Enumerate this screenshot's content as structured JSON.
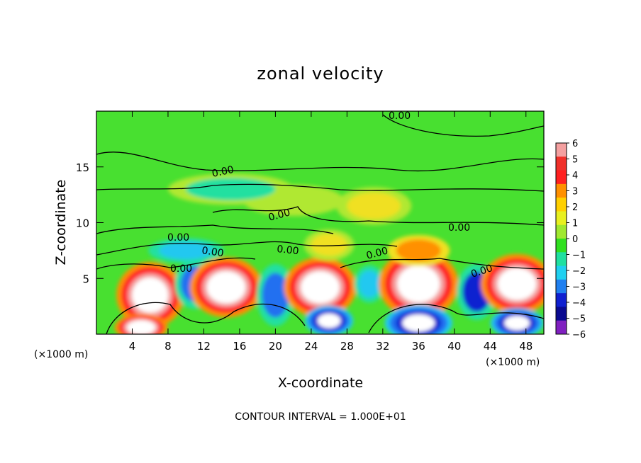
{
  "chart_data": {
    "type": "heatmap",
    "title": "zonal velocity",
    "xlabel": "X-coordinate",
    "ylabel": "Z-coordinate",
    "x_unit_left": "(×1000 m)",
    "x_unit_right": "(×1000 m)",
    "footer": "CONTOUR INTERVAL = 1.000E+01",
    "xlim": [
      0,
      50
    ],
    "ylim": [
      0,
      20
    ],
    "x_ticks": [
      "4",
      "8",
      "12",
      "16",
      "20",
      "24",
      "28",
      "32",
      "36",
      "40",
      "44",
      "48"
    ],
    "y_ticks": [
      "5",
      "10",
      "15"
    ],
    "contour_labels": [
      "0.00",
      "0.00",
      "0.00",
      "0.00",
      "0.00",
      "0.00",
      "0.00",
      "0.00",
      "0.00",
      "0.00"
    ],
    "colorbar": {
      "levels": [
        "6",
        "5",
        "4",
        "3",
        "2",
        "1",
        "0",
        "−1",
        "−2",
        "−3",
        "−4",
        "−5",
        "−6"
      ],
      "colors": [
        "#ffffff",
        "#f4a0a0",
        "#f0302a",
        "#ff2020",
        "#ff9000",
        "#ffd000",
        "#e8f020",
        "#a0e830",
        "#30e020",
        "#20e0a0",
        "#20d0f0",
        "#2080f0",
        "#1020d0",
        "#0a0a90",
        "#8020c0"
      ]
    },
    "blobs": [
      {
        "x": 6.0,
        "z": 3.5,
        "v": 6,
        "rx": 2.8,
        "rz": 2.2
      },
      {
        "x": 5.0,
        "z": 0.6,
        "v": 6,
        "rx": 2.2,
        "rz": 0.9
      },
      {
        "x": 11.0,
        "z": 4.5,
        "v": -3,
        "rx": 1.6,
        "rz": 1.6
      },
      {
        "x": 14.5,
        "z": 4.2,
        "v": 6,
        "rx": 3.0,
        "rz": 2.0
      },
      {
        "x": 20.0,
        "z": 3.5,
        "v": -3,
        "rx": 1.5,
        "rz": 2.0
      },
      {
        "x": 25.0,
        "z": 4.2,
        "v": 6,
        "rx": 3.0,
        "rz": 2.0
      },
      {
        "x": 26.0,
        "z": 1.2,
        "v": -6,
        "rx": 2.0,
        "rz": 1.0
      },
      {
        "x": 30.5,
        "z": 4.5,
        "v": -2,
        "rx": 1.2,
        "rz": 1.2
      },
      {
        "x": 36.0,
        "z": 4.5,
        "v": 6,
        "rx": 3.3,
        "rz": 2.3
      },
      {
        "x": 36.0,
        "z": 1.0,
        "v": -6,
        "rx": 2.8,
        "rz": 1.2
      },
      {
        "x": 42.5,
        "z": 3.8,
        "v": -4,
        "rx": 1.6,
        "rz": 1.8
      },
      {
        "x": 47.0,
        "z": 4.5,
        "v": 6,
        "rx": 3.0,
        "rz": 2.0
      },
      {
        "x": 47.0,
        "z": 1.0,
        "v": -6,
        "rx": 2.2,
        "rz": 1.0
      },
      {
        "x": 31.0,
        "z": 11.5,
        "v": 2,
        "rx": 3.0,
        "rz": 1.2
      },
      {
        "x": 22.0,
        "z": 12.0,
        "v": 1,
        "rx": 4.0,
        "rz": 1.0
      },
      {
        "x": 15.0,
        "z": 13.0,
        "v": -1,
        "rx": 5.0,
        "rz": 1.0
      },
      {
        "x": 36.0,
        "z": 7.5,
        "v": 3,
        "rx": 2.5,
        "rz": 1.0
      },
      {
        "x": 26.0,
        "z": 8.0,
        "v": 2,
        "rx": 2.0,
        "rz": 1.0
      },
      {
        "x": 10.0,
        "z": 7.5,
        "v": -2,
        "rx": 3.0,
        "rz": 0.8
      }
    ]
  }
}
